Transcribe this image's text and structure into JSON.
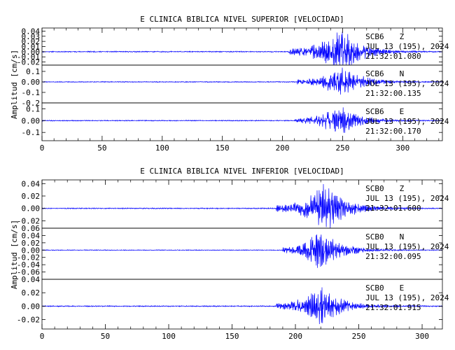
{
  "chart_data": [
    {
      "type": "line",
      "title": "E CLINICA BIBLICA NIVEL SUPERIOR [VELOCIDAD]",
      "ylabel": "Amplitud [cm/s]",
      "xlabel": "",
      "xlim": [
        0,
        333
      ],
      "xticks": [
        0,
        50,
        100,
        150,
        200,
        250,
        300
      ],
      "grid": false,
      "color": "#0000ff",
      "series": [
        {
          "name": "SCB6 Z",
          "station": "SCB6",
          "component": "Z",
          "date": "JUL 13 (195), 2024",
          "time": "21:32:01.080",
          "ylim": [
            -0.026,
            0.046
          ],
          "yticks": [
            0.04,
            0.03,
            0.02,
            0.01,
            0.0,
            -0.01,
            -0.02
          ],
          "onset_s": 205,
          "peak_s": 250,
          "peak_amplitude": 0.045,
          "background_noise": 0.001
        },
        {
          "name": "SCB6 N",
          "station": "SCB6",
          "component": "N",
          "date": "JUL 13 (195), 2024",
          "time": "21:32:00.135",
          "ylim": [
            -0.2,
            0.16
          ],
          "yticks": [
            0.1,
            0.0,
            -0.1,
            -0.2
          ],
          "onset_s": 212,
          "peak_s": 250,
          "peak_amplitude": 0.15,
          "background_noise": 0.004
        },
        {
          "name": "SCB6 E",
          "station": "SCB6",
          "component": "E",
          "date": "JUL 13 (195), 2024",
          "time": "21:32:00.170",
          "ylim": [
            -0.17,
            0.15
          ],
          "yticks": [
            0.1,
            0.0,
            -0.1
          ],
          "onset_s": 210,
          "peak_s": 248,
          "peak_amplitude": 0.13,
          "background_noise": 0.004
        }
      ]
    },
    {
      "type": "line",
      "title": "E CLINICA BIBLICA NIVEL INFERIOR [VELOCIDAD]",
      "ylabel": "Amplitud [cm/s]",
      "xlabel": "",
      "xlim": [
        0,
        316
      ],
      "xticks": [
        0,
        50,
        100,
        150,
        200,
        250,
        300
      ],
      "grid": false,
      "color": "#0000ff",
      "series": [
        {
          "name": "SCB0 Z",
          "station": "SCB0",
          "component": "Z",
          "date": "JUL 13 (195), 2024",
          "time": "21:32:01.600",
          "ylim": [
            -0.032,
            0.046
          ],
          "yticks": [
            0.04,
            0.02,
            0.0,
            -0.02
          ],
          "onset_s": 185,
          "peak_s": 224,
          "peak_amplitude": 0.04,
          "background_noise": 0.0008
        },
        {
          "name": "SCB0 N",
          "station": "SCB0",
          "component": "N",
          "date": "JUL 13 (195), 2024",
          "time": "21:32:00.095",
          "ylim": [
            -0.08,
            0.06
          ],
          "yticks": [
            0.06,
            0.04,
            0.02,
            0.0,
            -0.02,
            -0.04,
            -0.06
          ],
          "onset_s": 190,
          "peak_s": 220,
          "peak_amplitude": 0.055,
          "background_noise": 0.001
        },
        {
          "name": "SCB0 E",
          "station": "SCB0",
          "component": "E",
          "date": "JUL 13 (195), 2024",
          "time": "21:32:01.915",
          "ylim": [
            -0.034,
            0.04
          ],
          "yticks": [
            0.04,
            0.02,
            0.0,
            -0.02
          ],
          "onset_s": 185,
          "peak_s": 220,
          "peak_amplitude": 0.03,
          "background_noise": 0.0008
        }
      ]
    }
  ]
}
